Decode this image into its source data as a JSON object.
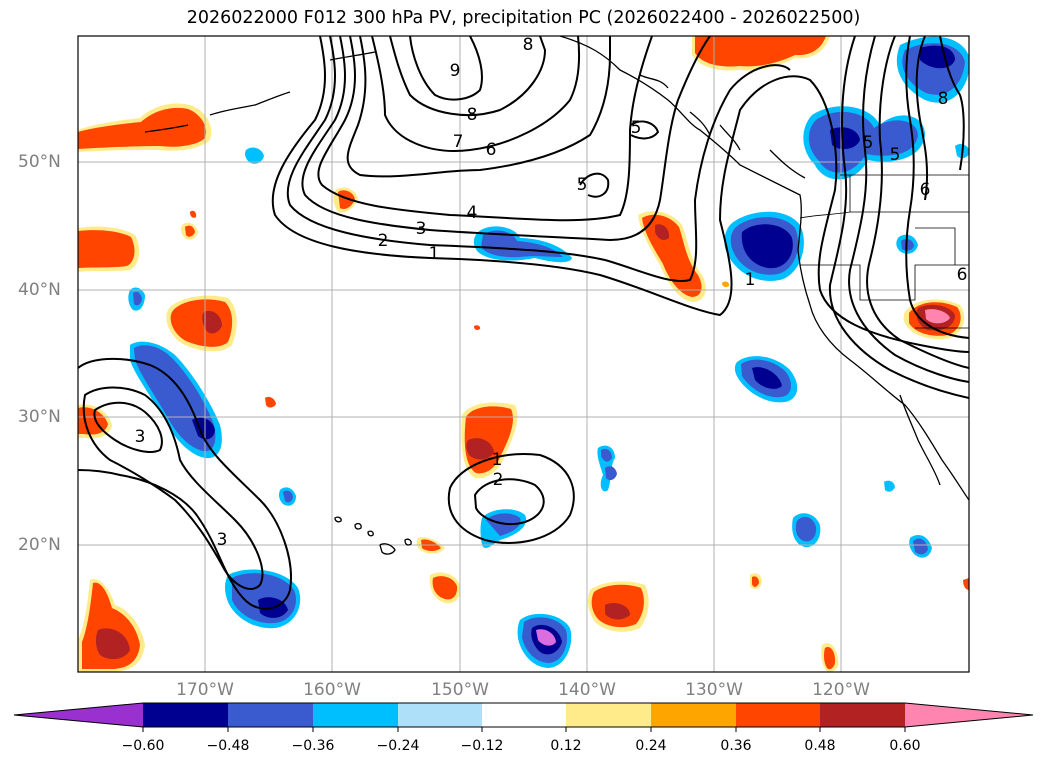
{
  "title": "2026022000 F012 300 hPa PV, precipitation PC (2026022400 - 2026022500)",
  "map": {
    "lat_labels": [
      "50°N",
      "40°N",
      "30°N",
      "20°N"
    ],
    "lon_labels": [
      "170°W",
      "160°W",
      "150°W",
      "140°W",
      "130°W",
      "120°W"
    ],
    "pv_contour_labels": [
      "8",
      "9",
      "8",
      "7",
      "6",
      "5",
      "5",
      "4",
      "3",
      "2",
      "1",
      "1",
      "3",
      "3",
      "1",
      "2",
      "5",
      "5",
      "6",
      "8",
      "6"
    ]
  },
  "colorbar": {
    "ticks": [
      "−0.60",
      "−0.48",
      "−0.36",
      "−0.24",
      "−0.12",
      "0.12",
      "0.24",
      "0.36",
      "0.48",
      "0.60"
    ],
    "colors": [
      "#9b30d0",
      "#000090",
      "#3a5bcf",
      "#00bfff",
      "#aee0fa",
      "#ffffff",
      "#ffeb8a",
      "#ffa500",
      "#ff4500",
      "#b22222",
      "#ff85b0"
    ]
  },
  "colors": {
    "grid": "#b0b0b0",
    "coast": "#000000",
    "contour": "#000000"
  }
}
